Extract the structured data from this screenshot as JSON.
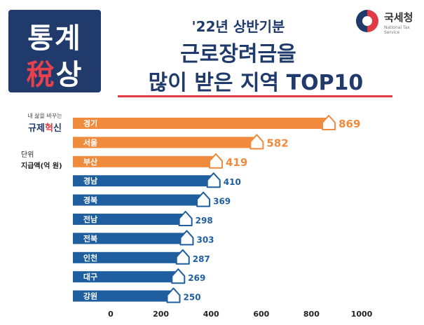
{
  "logo": {
    "line1": "통계",
    "line2_accent": "稅",
    "line2_rest": "상"
  },
  "agency": {
    "name": "국세청",
    "sub": "National Tax Service"
  },
  "header": {
    "title_line1": "'22년 상반기분",
    "title_line2": "근로장려금을",
    "title_line3": "많이 받은 지역 TOP10"
  },
  "side": {
    "tagline": "내 삶을 바꾸는",
    "brand_a": "규제",
    "brand_accent": "혁",
    "brand_b": "신",
    "unit_label": "단위",
    "unit_value": "지급액(억 원)"
  },
  "colors": {
    "top3": "#f08a3c",
    "rest": "#1f5fa0",
    "navy": "#1f3a6b",
    "red": "#e03a44"
  },
  "chart_data": {
    "type": "bar",
    "orientation": "horizontal",
    "categories": [
      "경기",
      "서울",
      "부산",
      "경남",
      "경북",
      "전남",
      "전북",
      "인천",
      "대구",
      "강원"
    ],
    "values": [
      869,
      582,
      419,
      410,
      369,
      298,
      303,
      287,
      269,
      250
    ],
    "highlighted_count": 3,
    "xlim": [
      0,
      1000
    ],
    "xticks": [
      0,
      200,
      400,
      600,
      800,
      1000
    ],
    "grid": false
  }
}
